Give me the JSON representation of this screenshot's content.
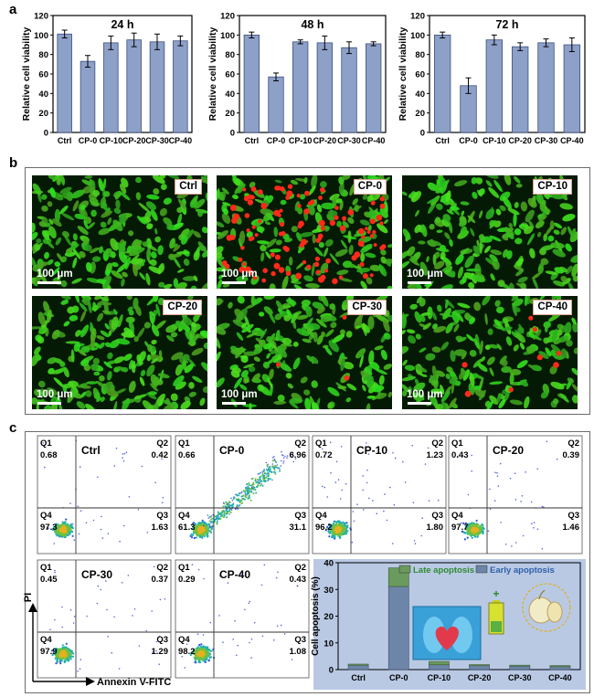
{
  "panels": {
    "a": "a",
    "b": "b",
    "c": "c"
  },
  "chart_data": [
    {
      "type": "bar",
      "title": "24 h",
      "ylabel": "Relative cell viability",
      "categories": [
        "Ctrl",
        "CP-0",
        "CP-10",
        "CP-20",
        "CP-30",
        "CP-40"
      ],
      "values": [
        101,
        73,
        92,
        95,
        93,
        94
      ],
      "errors": [
        4,
        6,
        7,
        7,
        8,
        5
      ],
      "ylim": [
        0,
        120
      ],
      "yticks": [
        "0",
        "20",
        "40",
        "60",
        "80",
        "100",
        "120"
      ]
    },
    {
      "type": "bar",
      "title": "48 h",
      "ylabel": "Relative cell viability",
      "categories": [
        "Ctrl",
        "CP-0",
        "CP-10",
        "CP-20",
        "CP-30",
        "CP-40"
      ],
      "values": [
        100,
        57,
        93,
        92,
        87,
        91
      ],
      "errors": [
        3,
        4,
        2,
        7,
        6,
        2
      ],
      "ylim": [
        0,
        120
      ],
      "yticks": [
        "0",
        "20",
        "40",
        "60",
        "80",
        "100",
        "120"
      ]
    },
    {
      "type": "bar",
      "title": "72 h",
      "ylabel": "Relative cell viability",
      "categories": [
        "Ctrl",
        "CP-0",
        "CP-10",
        "CP-20",
        "CP-30",
        "CP-40"
      ],
      "values": [
        100,
        48,
        95,
        88,
        92,
        90
      ],
      "errors": [
        3,
        8,
        5,
        4,
        4,
        7
      ],
      "ylim": [
        0,
        120
      ],
      "yticks": [
        "0",
        "20",
        "40",
        "60",
        "80",
        "100",
        "120"
      ]
    },
    {
      "type": "bar",
      "stacked": true,
      "ylabel": "Cell apoptosis (%)",
      "categories": [
        "Ctrl",
        "CP-0",
        "CP-10",
        "CP-20",
        "CP-30",
        "CP-40"
      ],
      "ylim": [
        0,
        40
      ],
      "yticks": [
        "0",
        "10",
        "20",
        "30",
        "40"
      ],
      "series": [
        {
          "name": "Early apoptosis",
          "values": [
            1.63,
            31.1,
            1.8,
            1.46,
            1.29,
            1.08
          ]
        },
        {
          "name": "Late apoptosis",
          "values": [
            0.42,
            6.96,
            1.23,
            0.39,
            0.37,
            0.43
          ]
        }
      ],
      "legend": "top"
    }
  ],
  "micrographs": [
    {
      "label": "Ctrl",
      "scale": "100 μm",
      "red_cells": 0,
      "density": 1.0
    },
    {
      "label": "CP-0",
      "scale": "100 μm",
      "red_cells": 110,
      "density": 0.75
    },
    {
      "label": "CP-10",
      "scale": "100 μm",
      "red_cells": 0,
      "density": 0.9
    },
    {
      "label": "CP-20",
      "scale": "100 μm",
      "red_cells": 0,
      "density": 1.0
    },
    {
      "label": "CP-30",
      "scale": "100 μm",
      "red_cells": 3,
      "density": 0.85
    },
    {
      "label": "CP-40",
      "scale": "100 μm",
      "red_cells": 8,
      "density": 0.85
    }
  ],
  "flow": {
    "xaxis": "Annexin V-FITC",
    "yaxis": "PI",
    "plots": [
      {
        "label": "Ctrl",
        "q1": "0.68",
        "q2": "0.42",
        "q3": "1.63",
        "q4": "97.3",
        "spread": 0.2
      },
      {
        "label": "CP-0",
        "q1": "0.66",
        "q2": "6.96",
        "q3": "31.1",
        "q4": "61.3",
        "spread": 1.0
      },
      {
        "label": "CP-10",
        "q1": "0.72",
        "q2": "1.23",
        "q3": "1.80",
        "q4": "96.2",
        "spread": 0.3
      },
      {
        "label": "CP-20",
        "q1": "0.43",
        "q2": "0.39",
        "q3": "1.46",
        "q4": "97.7",
        "spread": 0.2
      },
      {
        "label": "CP-30",
        "q1": "0.45",
        "q2": "0.37",
        "q3": "1.29",
        "q4": "97.9",
        "spread": 0.2
      },
      {
        "label": "CP-40",
        "q1": "0.29",
        "q2": "0.43",
        "q3": "1.08",
        "q4": "98.2",
        "spread": 0.2
      }
    ],
    "quadrant_names": {
      "q1": "Q1",
      "q2": "Q2",
      "q3": "Q3",
      "q4": "Q4"
    }
  },
  "colors": {
    "bar": "#8da0c8",
    "bar_edge": "#3d4f7c",
    "early": "#6d86a8",
    "late": "#6a9a5e",
    "legend_late_text": "#2f8a2f",
    "legend_early_text": "#2f5fa8",
    "apoptosis_bg": "#b9c9e4",
    "micro_bg": "#041a04",
    "cell_green": "#3fcf2c",
    "cell_red": "#ff2a1a"
  },
  "illustration": {
    "icons": [
      "heart-lungs-icon",
      "battery-icon",
      "garlic-icon"
    ]
  }
}
